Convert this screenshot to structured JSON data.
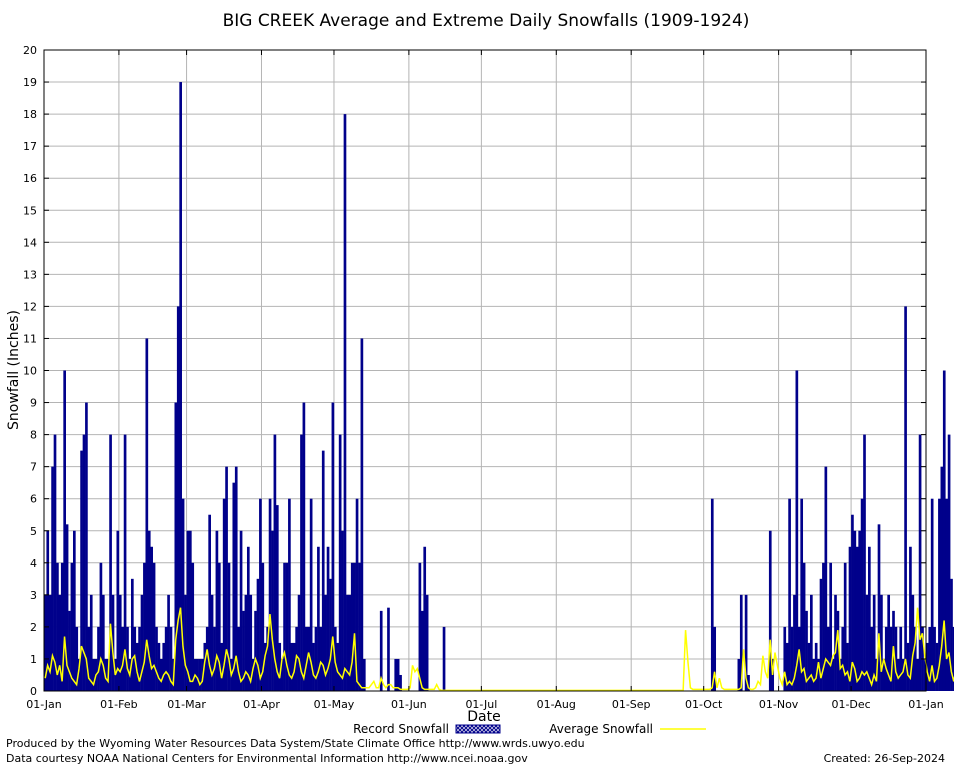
{
  "chart_data": {
    "type": "bar",
    "title": "BIG CREEK Average and Extreme Daily Snowfalls (1909-1924)",
    "xlabel": "Date",
    "ylabel": "Snowfall (Inches)",
    "ylim": [
      0,
      20
    ],
    "y_ticks": [
      "0",
      "1",
      "2",
      "3",
      "4",
      "5",
      "6",
      "7",
      "8",
      "9",
      "10",
      "11",
      "12",
      "13",
      "14",
      "15",
      "16",
      "17",
      "18",
      "19",
      "20"
    ],
    "x_tick_labels": [
      "01-Jan",
      "01-Feb",
      "01-Mar",
      "01-Apr",
      "01-May",
      "01-Jun",
      "01-Jul",
      "01-Aug",
      "01-Sep",
      "01-Oct",
      "01-Nov",
      "01-Dec",
      "01-Jan"
    ],
    "x_tick_days": [
      1,
      32,
      60,
      91,
      121,
      152,
      182,
      213,
      244,
      274,
      305,
      335,
      366
    ],
    "grid": true,
    "legend_placement": "bottom",
    "colors": {
      "record": "#00008b",
      "average": "#ffff00",
      "grid": "#b4b4b4"
    },
    "series": [
      {
        "name": "Record Snowfall",
        "kind": "bar",
        "x_start_day": 1,
        "values": [
          3,
          5,
          3,
          7,
          8,
          4,
          3,
          4,
          10,
          5.2,
          2.5,
          4,
          5,
          2,
          1,
          7.5,
          8,
          9,
          2,
          3,
          1,
          1,
          2,
          4,
          3,
          1,
          1,
          8,
          3,
          1,
          5,
          3,
          2,
          8,
          2,
          1,
          3.5,
          2,
          1.5,
          2,
          3,
          4,
          11,
          5,
          4.5,
          4,
          2,
          1.5,
          1,
          1.5,
          2,
          3,
          2,
          1,
          9,
          12,
          19,
          6,
          3,
          5,
          5,
          4,
          1,
          1,
          1,
          1,
          1.5,
          2,
          5.5,
          3,
          2,
          5,
          4,
          1.5,
          6,
          7,
          4,
          1,
          6.5,
          7,
          2,
          5,
          2.5,
          3,
          4.5,
          3,
          1,
          2.5,
          3.5,
          6,
          4,
          1.5,
          2,
          6,
          5,
          8,
          5.8,
          1.5,
          1,
          4,
          4,
          6,
          1.5,
          1.5,
          2,
          3,
          8,
          9,
          2,
          2,
          6,
          1.5,
          2,
          4.5,
          2,
          7.5,
          3,
          4.5,
          3.5,
          9,
          2,
          1.5,
          8,
          5,
          18,
          3,
          3,
          4,
          4,
          6,
          4,
          11,
          1,
          0,
          0,
          0,
          0,
          0,
          0,
          2.5,
          0,
          0,
          2.6,
          0,
          0,
          1,
          1,
          0.5,
          0,
          0,
          0,
          0,
          0,
          0,
          0,
          4,
          2.5,
          4.5,
          3,
          0,
          0,
          0,
          0,
          0,
          0,
          2,
          0,
          0,
          0,
          0,
          0,
          0,
          0,
          0,
          0,
          0,
          0,
          0,
          0,
          0,
          0,
          0,
          0,
          0,
          0,
          0,
          0,
          0,
          0,
          0,
          0,
          0,
          0,
          0,
          0,
          0,
          0,
          0,
          0,
          0,
          0,
          0,
          0,
          0,
          0,
          0,
          0,
          0,
          0,
          0,
          0,
          0,
          0,
          0,
          0,
          0,
          0,
          0,
          0,
          0,
          0,
          0,
          0,
          0,
          0,
          0,
          0,
          0,
          0,
          0,
          0,
          0,
          0,
          0,
          0,
          0,
          0,
          0,
          0,
          0,
          0,
          0,
          0,
          0,
          0,
          0,
          0,
          0,
          0,
          0,
          0,
          0,
          0,
          0,
          0,
          0,
          0,
          0,
          0,
          0,
          0,
          0,
          0,
          0,
          0,
          0,
          0,
          0,
          0,
          0,
          0,
          0,
          0,
          0,
          0,
          0,
          6,
          2,
          0,
          0,
          0,
          0,
          0,
          0,
          0,
          0,
          0,
          1,
          3,
          0,
          3,
          0.5,
          0,
          0,
          0,
          0,
          0,
          0,
          0,
          0,
          5,
          1,
          0,
          0,
          0,
          0,
          2,
          1.5,
          6,
          2,
          3,
          10,
          2,
          6,
          4,
          2.5,
          1.5,
          3,
          1,
          1.5,
          1,
          3.5,
          4,
          7,
          2,
          4,
          1,
          3,
          2.5,
          1,
          2,
          4,
          1.5,
          4.5,
          5.5,
          5,
          4.5,
          5,
          6,
          8,
          3,
          4.5,
          2,
          3,
          1,
          5.2,
          3,
          1,
          2,
          3,
          2,
          2.5,
          2,
          1,
          2,
          1,
          12,
          1.5,
          4.5,
          3,
          2,
          1,
          8,
          2,
          1,
          1.5,
          2,
          6,
          2,
          1.5,
          6,
          7,
          10,
          6,
          8,
          3.5,
          2,
          1.5,
          4,
          1,
          1.5,
          3,
          7,
          6,
          3,
          4,
          2.5,
          1,
          3,
          2,
          1,
          4,
          4,
          2
        ]
      },
      {
        "name": "Average Snowfall",
        "kind": "line",
        "x_start_day": 1,
        "values": [
          0.4,
          0.8,
          0.6,
          1.1,
          0.9,
          0.5,
          0.8,
          0.3,
          1.7,
          0.8,
          0.6,
          0.4,
          0.3,
          0.2,
          0.7,
          1.4,
          1.2,
          1.0,
          0.4,
          0.3,
          0.2,
          0.5,
          0.6,
          1.0,
          0.8,
          0.4,
          0.3,
          2.1,
          1.2,
          0.5,
          0.7,
          0.6,
          0.8,
          1.3,
          0.7,
          0.5,
          1.0,
          1.1,
          0.6,
          0.3,
          0.6,
          0.9,
          1.6,
          1.1,
          0.7,
          0.8,
          0.6,
          0.4,
          0.3,
          0.5,
          0.6,
          0.5,
          0.3,
          0.2,
          1.6,
          2.2,
          2.6,
          1.4,
          0.8,
          0.6,
          0.3,
          0.3,
          0.5,
          0.4,
          0.2,
          0.3,
          0.9,
          1.3,
          0.8,
          0.5,
          0.7,
          1.1,
          0.9,
          0.4,
          0.8,
          1.3,
          1.0,
          0.5,
          0.7,
          1.1,
          0.6,
          0.3,
          0.4,
          0.6,
          0.5,
          0.3,
          0.7,
          1.0,
          0.8,
          0.4,
          0.6,
          1.1,
          1.4,
          2.4,
          1.6,
          1.0,
          0.6,
          0.4,
          1.0,
          1.2,
          0.8,
          0.5,
          0.4,
          0.6,
          1.1,
          1.0,
          0.6,
          0.4,
          0.8,
          1.2,
          0.9,
          0.5,
          0.4,
          0.6,
          0.9,
          0.8,
          0.5,
          0.7,
          1.0,
          1.7,
          0.9,
          0.6,
          0.5,
          0.4,
          0.7,
          0.6,
          0.5,
          0.9,
          1.8,
          0.3,
          0.2,
          0.1,
          0.1,
          0.1,
          0.1,
          0.2,
          0.3,
          0.1,
          0.1,
          0.4,
          0.2,
          0.1,
          0.2,
          0.2,
          0.1,
          0.1,
          0.1,
          0.05,
          0.05,
          0.05,
          0.05,
          0.1,
          0.8,
          0.6,
          0.7,
          0.4,
          0.1,
          0.05,
          0.05,
          0.05,
          0.05,
          0.05,
          0.2,
          0.05,
          0.02,
          0.02,
          0.02,
          0.02,
          0.02,
          0.02,
          0.02,
          0.02,
          0.02,
          0.02,
          0.02,
          0.02,
          0.02,
          0.02,
          0.02,
          0.02,
          0.02,
          0.02,
          0.02,
          0.02,
          0.02,
          0.02,
          0.02,
          0.02,
          0.02,
          0.02,
          0.02,
          0.02,
          0.02,
          0.02,
          0.02,
          0.02,
          0.02,
          0.02,
          0.02,
          0.02,
          0.02,
          0.02,
          0.02,
          0.02,
          0.02,
          0.02,
          0.02,
          0.02,
          0.02,
          0.02,
          0.02,
          0.02,
          0.02,
          0.02,
          0.02,
          0.02,
          0.02,
          0.02,
          0.02,
          0.02,
          0.02,
          0.02,
          0.02,
          0.02,
          0.02,
          0.02,
          0.02,
          0.02,
          0.02,
          0.02,
          0.02,
          0.02,
          0.02,
          0.02,
          0.02,
          0.02,
          0.02,
          0.02,
          0.02,
          0.02,
          0.02,
          0.02,
          0.02,
          0.02,
          0.02,
          0.02,
          0.02,
          0.02,
          0.02,
          0.02,
          0.02,
          0.02,
          0.02,
          0.02,
          0.02,
          0.02,
          0.02,
          0.02,
          0.02,
          0.02,
          0.02,
          0.02,
          0.02,
          0.02,
          0.02,
          1.9,
          0.9,
          0.1,
          0.05,
          0.05,
          0.05,
          0.05,
          0.05,
          0.05,
          0.05,
          0.05,
          0.1,
          0.6,
          0.1,
          0.4,
          0.1,
          0.05,
          0.05,
          0.05,
          0.05,
          0.05,
          0.05,
          0.05,
          0.1,
          1.3,
          0.4,
          0.1,
          0.05,
          0.05,
          0.1,
          0.3,
          0.2,
          1.1,
          0.6,
          0.4,
          1.6,
          0.5,
          1.2,
          0.8,
          0.4,
          0.2,
          0.6,
          0.2,
          0.3,
          0.2,
          0.4,
          0.8,
          1.3,
          0.6,
          0.7,
          0.3,
          0.4,
          0.5,
          0.3,
          0.4,
          0.9,
          0.4,
          0.7,
          1.0,
          0.9,
          0.8,
          1.1,
          1.2,
          1.9,
          0.7,
          0.8,
          0.5,
          0.6,
          0.3,
          0.9,
          0.7,
          0.3,
          0.4,
          0.6,
          0.5,
          0.6,
          0.4,
          0.2,
          0.5,
          0.3,
          1.8,
          0.6,
          1.0,
          0.7,
          0.5,
          0.3,
          1.4,
          0.6,
          0.4,
          0.5,
          0.6,
          1.0,
          0.5,
          0.4,
          1.1,
          1.5,
          2.6,
          1.6,
          1.8,
          1.1,
          0.6,
          0.3,
          0.8,
          0.3,
          0.4,
          0.8,
          1.4,
          2.2,
          1.0,
          1.2,
          0.6,
          0.3,
          0.7,
          0.6,
          0.4,
          0.9,
          1.1,
          0.6
        ]
      }
    ]
  },
  "legend": {
    "record_label": "Record Snowfall",
    "average_label": "Average Snowfall"
  },
  "footer": {
    "produced_by": "Produced by the Wyoming Water Resources Data System/State Climate Office http://www.wrds.uwyo.edu",
    "data_courtesy": "Data courtesy NOAA National Centers for Environmental Information http://www.ncei.noaa.gov",
    "created": "Created:  26-Sep-2024"
  }
}
